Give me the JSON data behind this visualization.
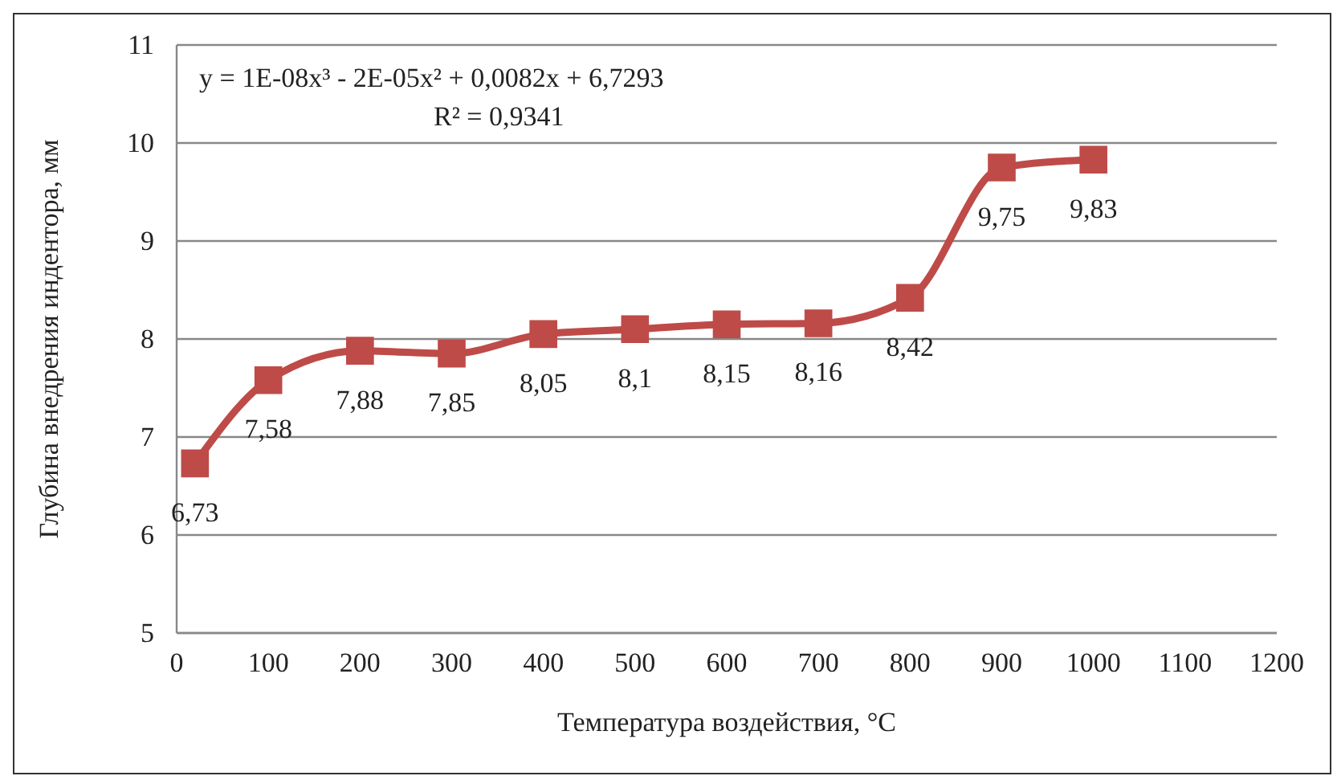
{
  "chart_data": {
    "type": "line",
    "xlabel": "Температура воздействия, °C",
    "ylabel": "Глубина внедрения индентора, мм",
    "x": [
      20,
      100,
      200,
      300,
      400,
      500,
      600,
      700,
      800,
      900,
      1000
    ],
    "series": [
      {
        "color": "#be4b48",
        "values": [
          6.73,
          7.58,
          7.88,
          7.85,
          8.05,
          8.1,
          8.15,
          8.16,
          8.42,
          9.75,
          9.83
        ],
        "value_labels": [
          "6,73",
          "7,58",
          "7,88",
          "7,85",
          "8,05",
          "8,1",
          "8,15",
          "8,16",
          "8,42",
          "9,75",
          "9,83"
        ]
      }
    ],
    "xlim": [
      0,
      1200
    ],
    "xticks": [
      0,
      100,
      200,
      300,
      400,
      500,
      600,
      700,
      800,
      900,
      1000,
      1100,
      1200
    ],
    "ylim": [
      5,
      11
    ],
    "yticks": [
      5,
      6,
      7,
      8,
      9,
      10,
      11
    ],
    "grid": "y",
    "marker": "square",
    "line_style": "solid",
    "annotations": [
      "y = 1E-08x³ - 2E-05x² + 0,0082x + 6,7293",
      "R² = 0,9341"
    ]
  }
}
